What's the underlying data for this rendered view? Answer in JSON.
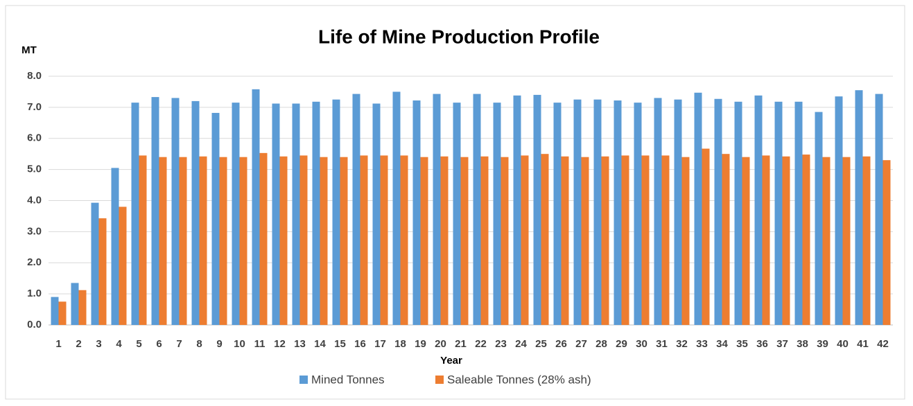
{
  "chart_data": {
    "type": "bar",
    "title": "Life of Mine Production Profile",
    "y_axis_label": "MT",
    "x_axis_label": "Year",
    "categories": [
      "1",
      "2",
      "3",
      "4",
      "5",
      "6",
      "7",
      "8",
      "9",
      "10",
      "11",
      "12",
      "13",
      "14",
      "15",
      "16",
      "17",
      "18",
      "19",
      "20",
      "21",
      "22",
      "23",
      "24",
      "25",
      "26",
      "27",
      "28",
      "29",
      "30",
      "31",
      "32",
      "33",
      "34",
      "35",
      "36",
      "37",
      "38",
      "39",
      "40",
      "41",
      "42"
    ],
    "series": [
      {
        "name": "Mined Tonnes",
        "color": "#5b9bd5",
        "values": [
          0.9,
          1.35,
          3.93,
          5.05,
          7.15,
          7.33,
          7.3,
          7.2,
          6.82,
          7.15,
          7.58,
          7.12,
          7.12,
          7.18,
          7.25,
          7.43,
          7.12,
          7.5,
          7.22,
          7.43,
          7.15,
          7.43,
          7.15,
          7.38,
          7.4,
          7.15,
          7.25,
          7.25,
          7.22,
          7.15,
          7.3,
          7.25,
          7.47,
          7.27,
          7.18,
          7.38,
          7.18,
          7.18,
          6.85,
          7.35,
          7.55,
          7.43
        ]
      },
      {
        "name": "Saleable Tonnes (28% ash)",
        "color": "#ed7d31",
        "values": [
          0.75,
          1.12,
          3.43,
          3.8,
          5.45,
          5.4,
          5.4,
          5.42,
          5.4,
          5.4,
          5.53,
          5.42,
          5.45,
          5.4,
          5.4,
          5.45,
          5.45,
          5.45,
          5.4,
          5.42,
          5.4,
          5.42,
          5.4,
          5.45,
          5.5,
          5.42,
          5.4,
          5.42,
          5.45,
          5.45,
          5.45,
          5.4,
          5.67,
          5.5,
          5.4,
          5.45,
          5.42,
          5.48,
          5.4,
          5.4,
          5.42,
          5.3
        ]
      }
    ],
    "ylim": [
      0,
      8
    ],
    "yticks": [
      {
        "value": 0,
        "label": "0.0"
      },
      {
        "value": 1,
        "label": "1.0"
      },
      {
        "value": 2,
        "label": "2.0"
      },
      {
        "value": 3,
        "label": "3.0"
      },
      {
        "value": 4,
        "label": "4.0"
      },
      {
        "value": 5,
        "label": "5.0"
      },
      {
        "value": 6,
        "label": "6.0"
      },
      {
        "value": 7,
        "label": "7.0"
      },
      {
        "value": 8,
        "label": "8.0"
      }
    ],
    "grid": true,
    "legend": "bottom"
  }
}
